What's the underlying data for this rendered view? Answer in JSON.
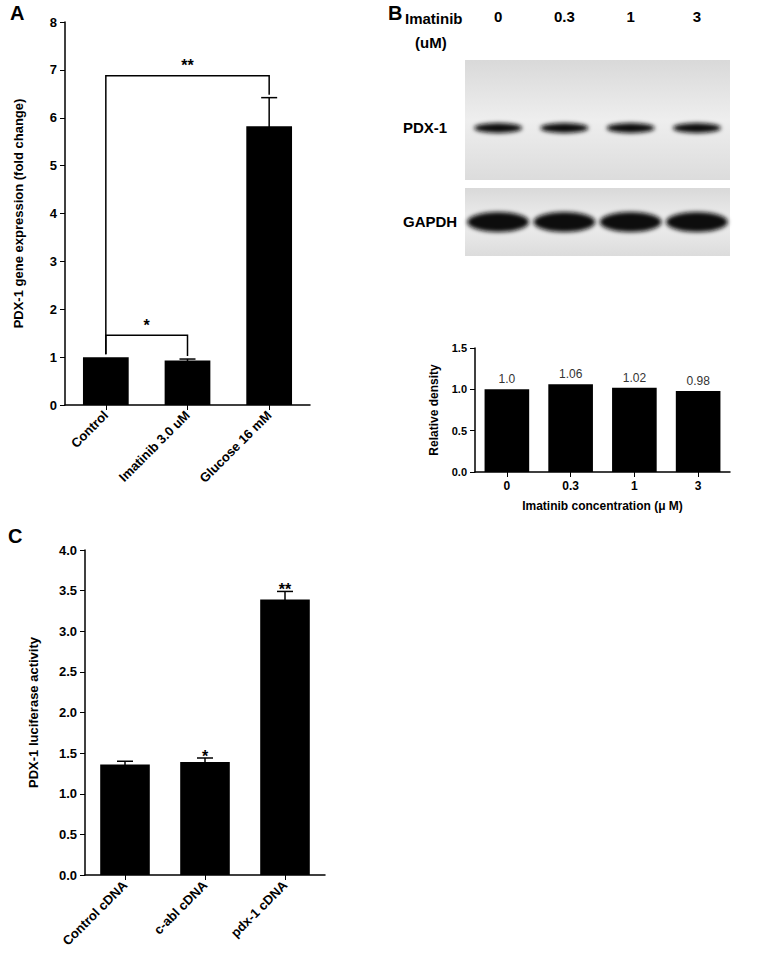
{
  "chart_data": [
    {
      "type": "bar",
      "annotations": [
        {
          "text": "A"
        },
        {
          "text": "*",
          "from": "Control",
          "to": "Imatinib 3.0 uM"
        },
        {
          "text": "**",
          "from": "Control",
          "to": "Glucose 16 mM"
        }
      ],
      "y_label": "PDX-1 gene expression (fold change)",
      "categories": [
        "Control",
        "Imatinib 3.0 uM",
        "Glucose 16 mM"
      ],
      "values": [
        1.0,
        0.93,
        5.82
      ],
      "errors": [
        0,
        0.03,
        0.6
      ],
      "color": "#000000",
      "ylim": [
        0,
        8
      ],
      "yticks": [
        0,
        1,
        2,
        3,
        4,
        5,
        6,
        7,
        8
      ],
      "grid": false
    },
    {
      "type": "bar",
      "x_label": "Imatinib concentration (μ M)",
      "y_label": "Relative density",
      "categories": [
        "0",
        "0.3",
        "1",
        "3"
      ],
      "values": [
        1.0,
        1.06,
        1.02,
        0.98
      ],
      "value_labels": [
        "1.0",
        "1.06",
        "1.02",
        "0.98"
      ],
      "data_labels": true,
      "color": "#000000",
      "ylim": [
        0,
        1.5
      ],
      "yticks": [
        {
          "value": 0,
          "label": "0.0"
        },
        {
          "value": 0.5,
          "label": "0.5"
        },
        {
          "value": 1,
          "label": "1.0"
        },
        {
          "value": 1.5,
          "label": "1.5"
        }
      ],
      "grid": false
    },
    {
      "type": "bar",
      "annotations": [
        {
          "text": "C"
        },
        {
          "text": "*",
          "category": "c-abl cDNA"
        },
        {
          "text": "**",
          "category": "pdx-1 cDNA"
        }
      ],
      "y_label": "PDX-1 luciferase activity",
      "categories": [
        "Control cDNA",
        "c-abl cDNA",
        "pdx-1 cDNA"
      ],
      "values": [
        1.36,
        1.39,
        3.39
      ],
      "errors": [
        0.04,
        0.05,
        0.1
      ],
      "color": "#000000",
      "ylim": [
        0,
        4
      ],
      "yticks": [
        {
          "value": 0,
          "label": "0.0"
        },
        {
          "value": 0.5,
          "label": "0.5"
        },
        {
          "value": 1,
          "label": "1.0"
        },
        {
          "value": 1.5,
          "label": "1.5"
        },
        {
          "value": 2,
          "label": "2.0"
        },
        {
          "value": 2.5,
          "label": "2.5"
        },
        {
          "value": 3,
          "label": "3.0"
        },
        {
          "value": 3.5,
          "label": "3.5"
        },
        {
          "value": 4,
          "label": "4.0"
        }
      ],
      "grid": false
    }
  ],
  "blot": {
    "label": "B",
    "header": [
      "Imatinib",
      "(uM)"
    ],
    "lanes": [
      "0",
      "0.3",
      "1",
      "3"
    ],
    "rows": [
      "PDX-1",
      "GAPDH"
    ]
  }
}
